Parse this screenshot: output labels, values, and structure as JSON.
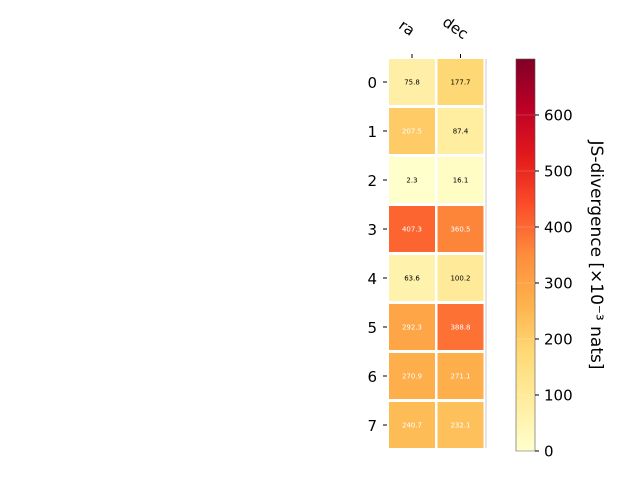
{
  "chart_data": {
    "type": "heatmap",
    "columns": [
      "ra",
      "dec"
    ],
    "rows": [
      "0",
      "1",
      "2",
      "3",
      "4",
      "5",
      "6",
      "7"
    ],
    "values": [
      [
        75.8,
        177.7
      ],
      [
        207.5,
        87.4
      ],
      [
        2.3,
        16.1
      ],
      [
        407.3,
        360.5
      ],
      [
        63.6,
        100.2
      ],
      [
        292.3,
        388.8
      ],
      [
        270.9,
        271.1
      ],
      [
        240.7,
        232.1
      ]
    ],
    "value_labels": [
      [
        "75.8",
        "177.7"
      ],
      [
        "207.5",
        "87.4"
      ],
      [
        "2.3",
        "16.1"
      ],
      [
        "407.3",
        "360.5"
      ],
      [
        "63.6",
        "100.2"
      ],
      [
        "292.3",
        "388.8"
      ],
      [
        "270.9",
        "271.1"
      ],
      [
        "240.7",
        "232.1"
      ]
    ],
    "colormap": "YlOrRd",
    "color_range": [
      0,
      700
    ],
    "colorbar": {
      "label": "JS-divergence [×10⁻³ nats]",
      "ticks": [
        0,
        100,
        200,
        300,
        400,
        500,
        600
      ],
      "tick_labels": [
        "0",
        "100",
        "200",
        "300",
        "400",
        "500",
        "600"
      ]
    },
    "grid": false
  }
}
